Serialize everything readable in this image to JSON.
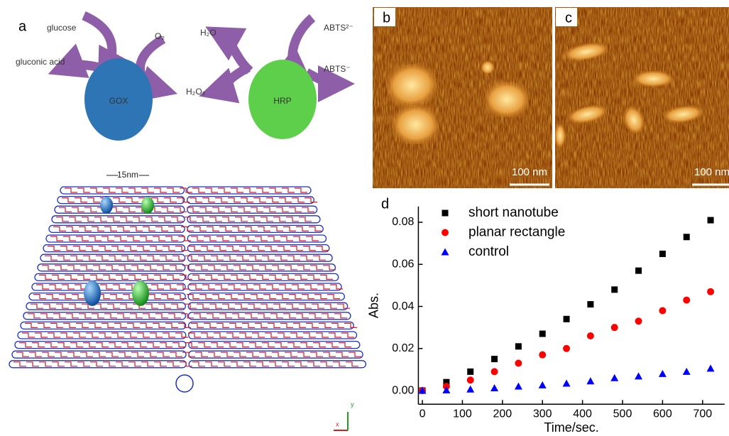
{
  "panel_a": {
    "label": "a",
    "glucose": "glucose",
    "gluconic_acid": "gluconic acid",
    "o2": "O₂",
    "h2o2": "H₂O₂",
    "h2o": "H₂O",
    "abts_in": "ABTS²⁻",
    "abts_out": "ABTS⁻",
    "gox": "GOX",
    "hrp": "HRP",
    "scale": "15nm",
    "axis_x": "x",
    "axis_y": "y"
  },
  "panel_b": {
    "label": "b",
    "scale": "100 nm"
  },
  "panel_c": {
    "label": "c",
    "scale": "100 nm"
  },
  "chart_data": {
    "type": "scatter",
    "label": "d",
    "xlabel": "Time/sec.",
    "ylabel": "Abs.",
    "x": [
      0,
      60,
      120,
      180,
      240,
      300,
      360,
      420,
      480,
      540,
      600,
      660,
      720
    ],
    "series": [
      {
        "name": "short nanotube",
        "color": "#000000",
        "marker": "square",
        "values": [
          0,
          0.004,
          0.009,
          0.015,
          0.021,
          0.027,
          0.034,
          0.041,
          0.048,
          0.057,
          0.065,
          0.073,
          0.081
        ]
      },
      {
        "name": "planar rectangle",
        "color": "#ff0000",
        "marker": "circle",
        "values": [
          0,
          0.002,
          0.005,
          0.009,
          0.013,
          0.017,
          0.02,
          0.026,
          0.03,
          0.033,
          0.038,
          0.043,
          0.047
        ]
      },
      {
        "name": "control",
        "color": "#0000ff",
        "marker": "triangle",
        "values": [
          0,
          0.0002,
          0.0006,
          0.0012,
          0.002,
          0.0026,
          0.0034,
          0.0045,
          0.006,
          0.0068,
          0.008,
          0.009,
          0.0105
        ]
      }
    ],
    "xlim": [
      -10,
      755
    ],
    "ylim": [
      -0.0065,
      0.0875
    ],
    "xticks": [
      0,
      100,
      200,
      300,
      400,
      500,
      600,
      700
    ],
    "yticks": [
      {
        "value": 0,
        "label": "0.00"
      },
      {
        "value": 0.02,
        "label": "0.02"
      },
      {
        "value": 0.04,
        "label": "0.04"
      },
      {
        "value": 0.06,
        "label": "0.06"
      },
      {
        "value": 0.08,
        "label": "0.08"
      }
    ],
    "legend": "upper left"
  }
}
